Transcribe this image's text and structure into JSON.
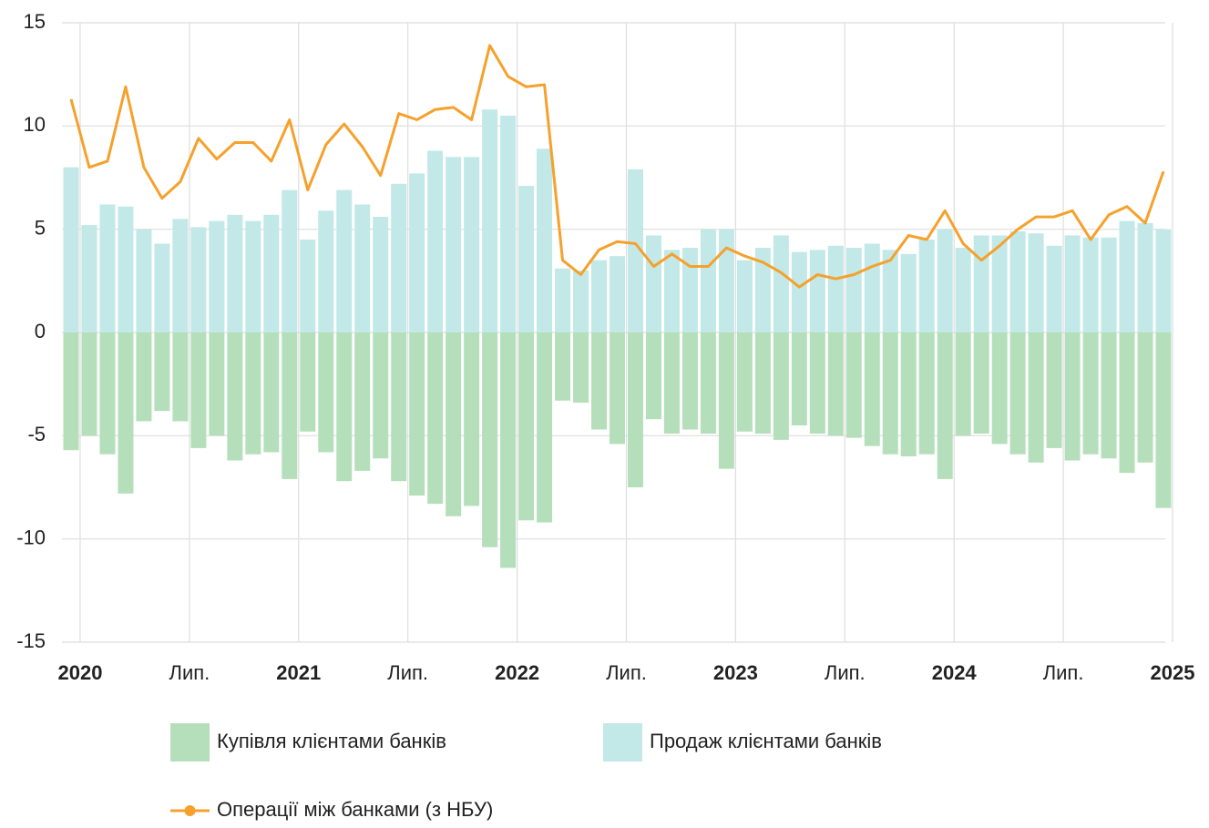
{
  "chart_data": {
    "type": "bar",
    "categories": [
      "2020",
      null,
      null,
      null,
      null,
      null,
      "Лип.",
      null,
      null,
      null,
      null,
      null,
      "2021",
      null,
      null,
      null,
      null,
      null,
      "Лип.",
      null,
      null,
      null,
      null,
      null,
      "2022",
      null,
      null,
      null,
      null,
      null,
      "Лип.",
      null,
      null,
      null,
      null,
      null,
      "2023",
      null,
      null,
      null,
      null,
      null,
      "Лип.",
      null,
      null,
      null,
      null,
      null,
      "2024",
      null,
      null,
      null,
      null,
      null,
      "Лип.",
      null,
      null,
      null,
      null,
      null,
      "2025"
    ],
    "series": [
      {
        "name": "Купівля клієнтами банків",
        "type": "bar",
        "color": "#b5dfba",
        "values": [
          -5.7,
          -5.0,
          -5.9,
          -7.8,
          -4.3,
          -3.8,
          -4.3,
          -5.6,
          -5.0,
          -6.2,
          -5.9,
          -5.8,
          -7.1,
          -4.8,
          -5.8,
          -7.2,
          -6.7,
          -6.1,
          -7.2,
          -7.9,
          -8.3,
          -8.9,
          -8.4,
          -10.4,
          -11.4,
          -9.1,
          -9.2,
          -3.3,
          -3.4,
          -4.7,
          -5.4,
          -7.5,
          -4.2,
          -4.9,
          -4.7,
          -4.9,
          -6.6,
          -4.8,
          -4.9,
          -5.2,
          -4.5,
          -4.9,
          -5.0,
          -5.1,
          -5.5,
          -5.9,
          -6.0,
          -5.9,
          -7.1,
          -5.0,
          -4.9,
          -5.4,
          -5.9,
          -6.3,
          -5.6,
          -6.2,
          -5.9,
          -6.1,
          -6.8,
          -6.3,
          -8.5
        ]
      },
      {
        "name": "Продаж клієнтами банків",
        "type": "bar",
        "color": "#c2e8e8",
        "values": [
          8.0,
          5.2,
          6.2,
          6.1,
          5.0,
          4.3,
          5.5,
          5.1,
          5.4,
          5.7,
          5.4,
          5.7,
          6.9,
          4.5,
          5.9,
          6.9,
          6.2,
          5.6,
          7.2,
          7.7,
          8.8,
          8.5,
          8.5,
          10.8,
          10.5,
          7.1,
          8.9,
          3.1,
          3.0,
          3.5,
          3.7,
          7.9,
          4.7,
          4.0,
          4.1,
          5.0,
          5.0,
          3.5,
          4.1,
          4.7,
          3.9,
          4.0,
          4.2,
          4.1,
          4.3,
          4.0,
          3.8,
          4.5,
          5.0,
          4.1,
          4.7,
          4.7,
          4.9,
          4.8,
          4.2,
          4.7,
          4.6,
          4.6,
          5.4,
          5.3,
          5.0
        ]
      },
      {
        "name": "Операції між банками (з НБУ)",
        "type": "line",
        "color": "#f5a12b",
        "values": [
          11.3,
          8.0,
          8.3,
          11.9,
          8.0,
          6.5,
          7.3,
          9.4,
          8.4,
          9.2,
          9.2,
          8.3,
          10.3,
          6.9,
          9.1,
          10.1,
          9.0,
          7.6,
          10.6,
          10.3,
          10.8,
          10.9,
          10.3,
          13.9,
          12.4,
          11.9,
          12.0,
          3.5,
          2.8,
          4.0,
          4.4,
          4.3,
          3.2,
          3.8,
          3.2,
          3.2,
          4.1,
          3.7,
          3.4,
          2.9,
          2.2,
          2.8,
          2.6,
          2.8,
          3.2,
          3.5,
          4.7,
          4.5,
          5.9,
          4.3,
          3.5,
          4.2,
          5.0,
          5.6,
          5.6,
          5.9,
          4.5,
          5.7,
          6.1,
          5.3,
          7.8
        ]
      }
    ],
    "ylim": [
      -15,
      15
    ],
    "yticks": [
      -15,
      -10,
      -5,
      0,
      5,
      10,
      15
    ],
    "grid": true
  }
}
